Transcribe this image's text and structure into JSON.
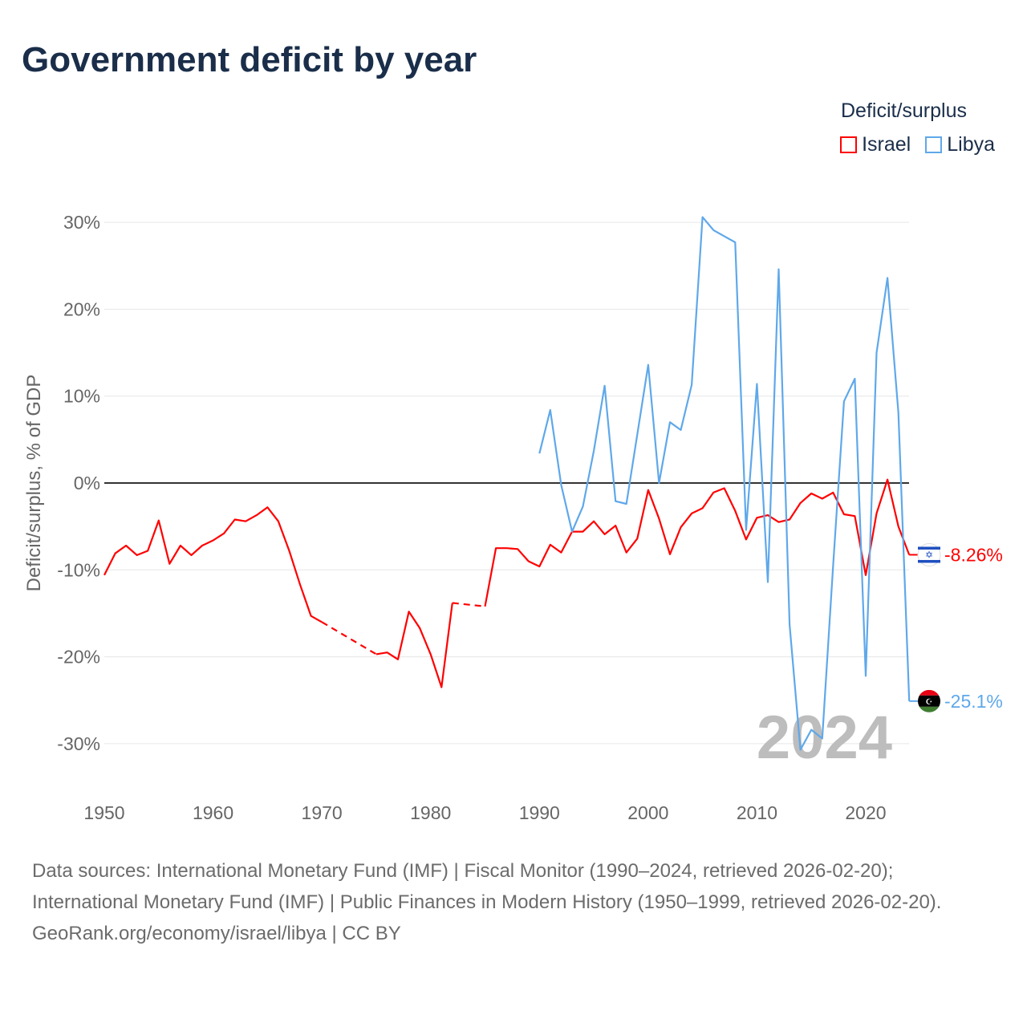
{
  "title": "Government deficit by year",
  "legend": {
    "title": "Deficit/surplus",
    "items": [
      {
        "name": "Israel",
        "color": "#ff0000"
      },
      {
        "name": "Libya",
        "color": "#5fa8ea"
      }
    ]
  },
  "footer": {
    "sources": "Data sources: International Monetary Fund (IMF) | Fiscal Monitor (1990–2024, retrieved 2026-02-20); International Monetary Fund (IMF) | Public Finances in Modern History (1950–1999, retrieved 2026-02-20).",
    "credit": "GeoRank.org/economy/israel/libya | CC BY"
  },
  "chart_data": {
    "type": "line",
    "title": "Government deficit by year",
    "ylabel": "Deficit/surplus, % of GDP",
    "xlabel": "",
    "xlim": [
      1950,
      2024
    ],
    "ylim": [
      -35,
      33
    ],
    "x_ticks": [
      1950,
      1960,
      1970,
      1980,
      1990,
      2000,
      2010,
      2020
    ],
    "x_tick_labels": [
      "1950",
      "1960",
      "1970",
      "1980",
      "1990",
      "2000",
      "2010",
      "2020"
    ],
    "y_ticks": [
      30,
      20,
      10,
      0,
      -10,
      -20,
      -30
    ],
    "y_tick_labels": [
      "30%",
      "20%",
      "10%",
      "0%",
      "-10%",
      "-20%",
      "-30%"
    ],
    "year_watermark": "2024",
    "grid": true,
    "legend_position": "top-right",
    "series": [
      {
        "name": "Israel",
        "color": "#ff0000",
        "end_label": "-8.26%",
        "x": [
          1950,
          1951,
          1952,
          1953,
          1954,
          1955,
          1956,
          1957,
          1958,
          1959,
          1960,
          1961,
          1962,
          1963,
          1964,
          1965,
          1966,
          1967,
          1968,
          1969,
          1970,
          1975,
          1976,
          1977,
          1978,
          1979,
          1980,
          1981,
          1982,
          1985,
          1986,
          1987,
          1988,
          1989,
          1990,
          1991,
          1992,
          1993,
          1994,
          1995,
          1996,
          1997,
          1998,
          1999,
          2000,
          2001,
          2002,
          2003,
          2004,
          2005,
          2006,
          2007,
          2008,
          2009,
          2010,
          2011,
          2012,
          2013,
          2014,
          2015,
          2016,
          2017,
          2018,
          2019,
          2020,
          2021,
          2022,
          2023,
          2024
        ],
        "y": [
          -10.6,
          -8.1,
          -7.2,
          -8.3,
          -7.8,
          -4.3,
          -9.3,
          -7.2,
          -8.3,
          -7.2,
          -6.6,
          -5.8,
          -4.2,
          -4.4,
          -3.7,
          -2.8,
          -4.4,
          -7.8,
          -11.7,
          -15.3,
          -16.0,
          -19.7,
          -19.5,
          -20.3,
          -14.8,
          -16.7,
          -19.7,
          -23.5,
          -13.8,
          -14.2,
          -7.5,
          -7.5,
          -7.6,
          -9.0,
          -9.6,
          -7.1,
          -8.0,
          -5.6,
          -5.6,
          -4.4,
          -5.9,
          -4.9,
          -8.0,
          -6.4,
          -0.8,
          -4.1,
          -8.2,
          -5.1,
          -3.5,
          -2.9,
          -1.1,
          -0.6,
          -3.2,
          -6.5,
          -4.0,
          -3.7,
          -4.5,
          -4.2,
          -2.3,
          -1.2,
          -1.8,
          -1.1,
          -3.6,
          -3.8,
          -10.6,
          -3.5,
          0.4,
          -5.0,
          -8.26
        ]
      },
      {
        "name": "Libya",
        "color": "#5fa8ea",
        "end_label": "-25.1%",
        "x": [
          1990,
          1991,
          1992,
          1993,
          1994,
          1995,
          1996,
          1997,
          1998,
          1999,
          2000,
          2001,
          2002,
          2003,
          2004,
          2005,
          2006,
          2007,
          2008,
          2009,
          2010,
          2011,
          2012,
          2013,
          2014,
          2015,
          2016,
          2017,
          2018,
          2019,
          2020,
          2021,
          2022,
          2023,
          2024
        ],
        "y": [
          3.4,
          8.4,
          -0.2,
          -5.6,
          -2.7,
          3.7,
          11.2,
          -2.1,
          -2.4,
          5.6,
          13.6,
          0.0,
          7.0,
          6.1,
          11.3,
          30.6,
          29.1,
          28.4,
          27.7,
          -5.4,
          11.4,
          -11.4,
          24.6,
          -16.3,
          -30.7,
          -28.4,
          -29.4,
          -9.6,
          9.4,
          12.0,
          -22.2,
          15.0,
          23.6,
          8.1,
          -25.1
        ]
      }
    ]
  }
}
